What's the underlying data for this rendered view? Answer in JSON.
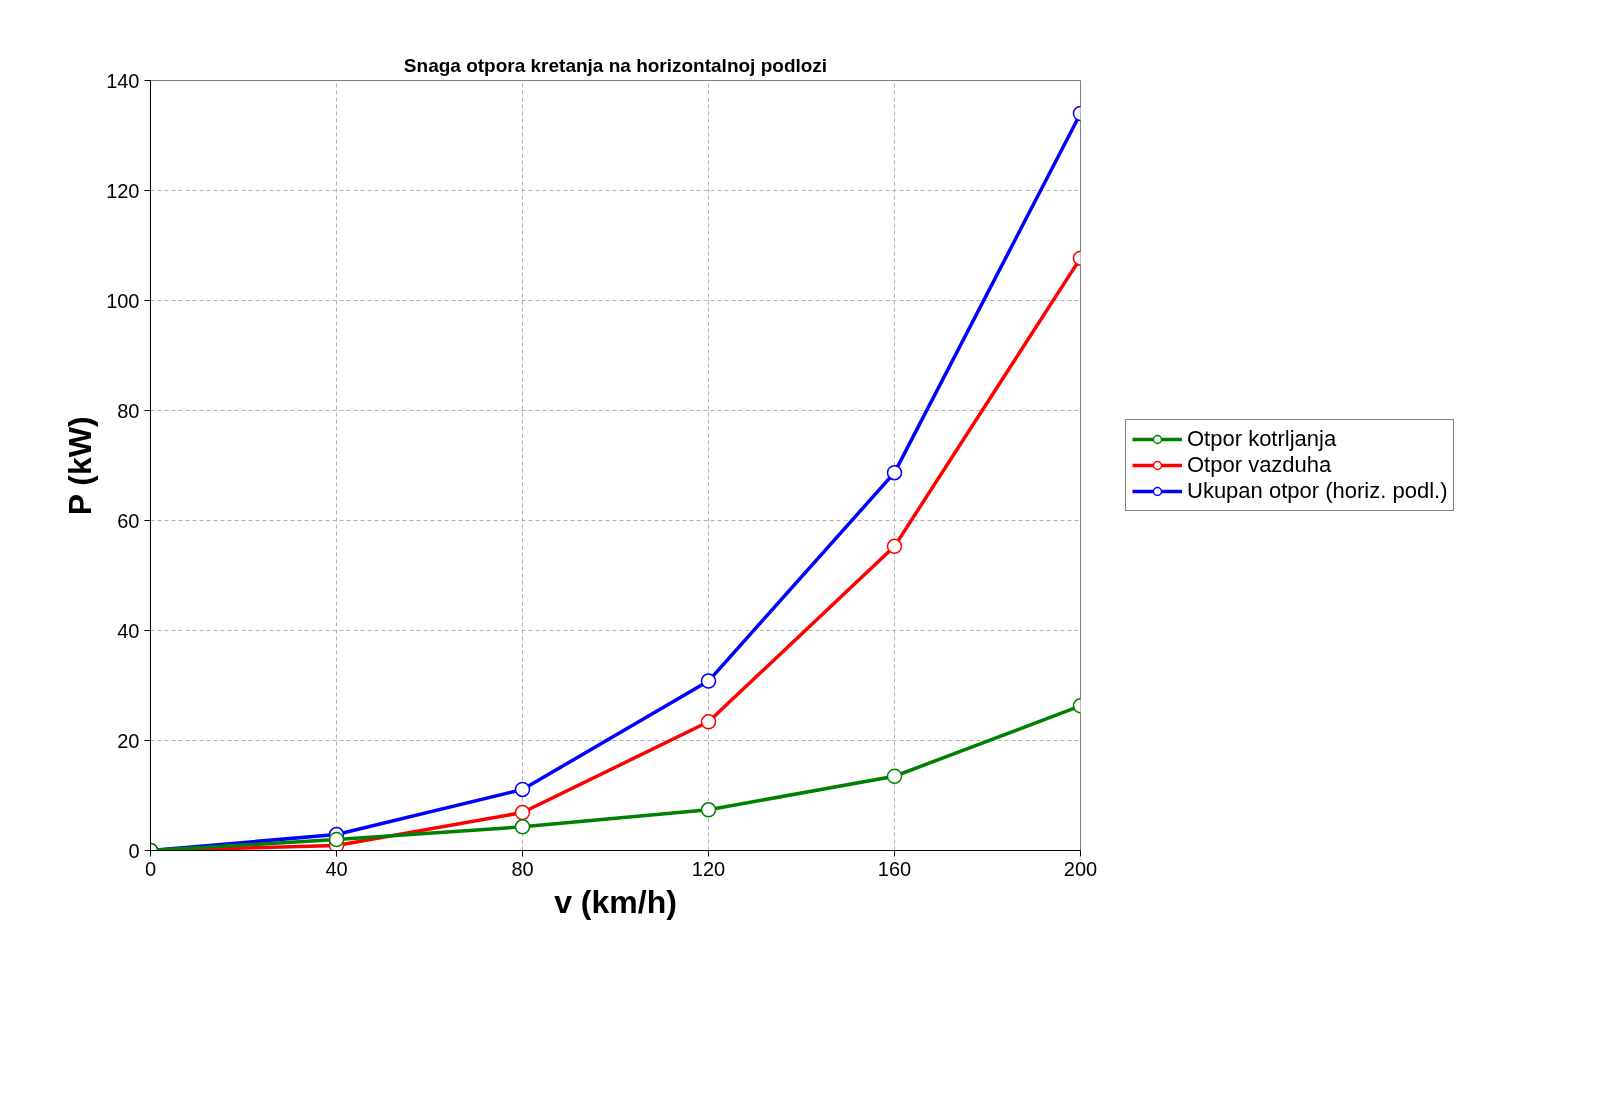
{
  "chart_data": {
    "type": "line",
    "title": "Snaga otpora kretanja na horizontalnoj podlozi",
    "xlabel": "v (km/h)",
    "ylabel": "P (kW)",
    "x": [
      0,
      40,
      80,
      120,
      160,
      200
    ],
    "series": [
      {
        "name": "Otpor kotrljanja",
        "color": "#008000",
        "values": [
          0,
          2.0,
          4.3,
          7.4,
          13.5,
          26.3
        ]
      },
      {
        "name": "Otpor vazduha",
        "color": "#ff0000",
        "values": [
          0,
          0.9,
          6.9,
          23.4,
          55.3,
          107.7
        ]
      },
      {
        "name": "Ukupan otpor (horiz. podl.)",
        "color": "#0000ff",
        "values": [
          0,
          2.9,
          11.1,
          30.8,
          68.7,
          134.0
        ]
      }
    ],
    "xlim": [
      0,
      200
    ],
    "xticks": [
      0,
      40,
      80,
      120,
      160,
      200
    ],
    "ylim": [
      0,
      140
    ],
    "yticks": [
      0,
      20,
      40,
      60,
      80,
      100,
      120,
      140
    ],
    "grid": true,
    "legend": "right",
    "marker": "circle",
    "line_style": "solid"
  }
}
